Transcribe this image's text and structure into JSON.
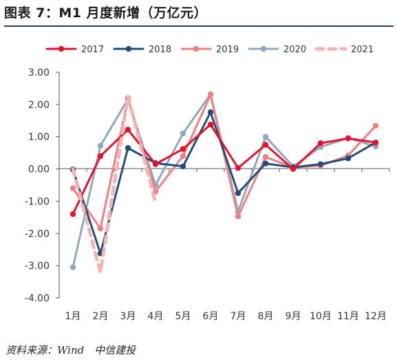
{
  "page": {
    "title": "图表 7：M1 月度新增（万亿元）",
    "source": "资料来源：Wind　中信建投"
  },
  "chart_data": {
    "type": "line",
    "title": "M1 月度新增（万亿元）",
    "xlabel": "",
    "ylabel": "",
    "categories": [
      "1月",
      "2月",
      "3月",
      "4月",
      "5月",
      "6月",
      "7月",
      "8月",
      "9月",
      "10月",
      "11月",
      "12月"
    ],
    "ylim": [
      -4.0,
      3.0
    ],
    "yticks": [
      "3.00",
      "2.00",
      "1.00",
      "0.00",
      "-1.00",
      "-2.00",
      "-3.00",
      "-4.00"
    ],
    "grid": false,
    "legend_position": "top",
    "series": [
      {
        "name": "2017",
        "color": "#e8102a",
        "dashed": false,
        "values": [
          -1.4,
          0.4,
          1.22,
          0.15,
          0.62,
          1.38,
          0.03,
          0.75,
          0.0,
          0.8,
          0.95,
          0.82
        ]
      },
      {
        "name": "2018",
        "color": "#1f4e79",
        "dashed": false,
        "values": [
          -0.02,
          -2.62,
          0.65,
          0.18,
          0.08,
          1.76,
          -0.75,
          0.17,
          0.05,
          0.15,
          0.33,
          0.82
        ]
      },
      {
        "name": "2019",
        "color": "#f08080",
        "dashed": false,
        "values": [
          -0.6,
          -1.85,
          2.2,
          -0.7,
          0.4,
          2.3,
          -1.47,
          0.37,
          0.05,
          0.1,
          0.42,
          1.34
        ]
      },
      {
        "name": "2020",
        "color": "#8fa8bd",
        "dashed": false,
        "values": [
          -3.05,
          0.72,
          2.17,
          -0.5,
          1.1,
          2.32,
          -1.32,
          1.0,
          0.08,
          0.68,
          0.96,
          0.7
        ]
      },
      {
        "name": "2021",
        "color": "#f7b3b3",
        "dashed": true,
        "values": [
          0.0,
          -3.2,
          2.25,
          -1.05,
          null,
          null,
          null,
          null,
          null,
          null,
          null,
          null
        ]
      }
    ]
  }
}
